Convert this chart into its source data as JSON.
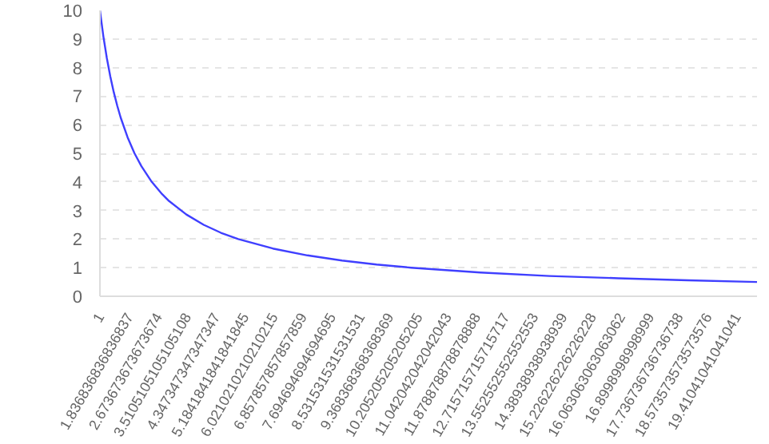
{
  "chart_data": {
    "type": "line",
    "x": [
      1,
      1.1,
      1.2,
      1.3,
      1.4,
      1.5,
      1.6,
      1.8,
      2,
      2.2,
      2.5,
      2.8,
      3,
      3.5,
      4,
      4.5,
      5,
      6,
      7,
      8,
      9,
      10,
      12,
      14,
      16,
      18,
      20
    ],
    "series": [
      {
        "color": "#3f3fff",
        "values": [
          10,
          9.09,
          8.33,
          7.69,
          7.14,
          6.67,
          6.25,
          5.56,
          5,
          4.55,
          4,
          3.57,
          3.33,
          2.86,
          2.5,
          2.22,
          2,
          1.67,
          1.43,
          1.25,
          1.11,
          1,
          0.83,
          0.71,
          0.63,
          0.56,
          0.5
        ]
      }
    ],
    "xlim": [
      1,
      20
    ],
    "xticks": [
      1,
      {
        "value": 1.836836836836837,
        "label": "1.836836836836837"
      },
      {
        "value": 2.673673673673674,
        "label": "2.673673673673674"
      },
      {
        "value": 3.5105105105105108,
        "label": "3.5105105105105108"
      },
      {
        "value": 4.347347347347347,
        "label": "4.347347347347347"
      },
      {
        "value": 5.1841841841841845,
        "label": "5.1841841841841845"
      },
      {
        "value": 6.0210210210210215,
        "label": "6.0210210210210215"
      },
      {
        "value": 6.857857857857859,
        "label": "6.857857857857859"
      },
      {
        "value": 7.694694694694695,
        "label": "7.694694694694695"
      },
      {
        "value": 8.531531531531531,
        "label": "8.531531531531531"
      },
      {
        "value": 9.368368368368369,
        "label": "9.368368368368369"
      },
      {
        "value": 10.205205205205205,
        "label": "10.205205205205205"
      },
      {
        "value": 11.042042042042043,
        "label": "11.042042042042043"
      },
      {
        "value": 11.878878878878888,
        "label": "11.878878878878888"
      },
      {
        "value": 12.715715715715717,
        "label": "12.715715715715717"
      },
      {
        "value": 13.552552552552553,
        "label": "13.552552552552553"
      },
      {
        "value": 14.38938938938939,
        "label": "14.38938938938939"
      },
      {
        "value": 15.226226226226228,
        "label": "15.226226226226228"
      },
      {
        "value": 16.063063063063062,
        "label": "16.063063063063062"
      },
      {
        "value": 16.8998998998999,
        "label": "16.8998998998999"
      },
      {
        "value": 17.736736736736738,
        "label": "17.736736736736738"
      },
      {
        "value": 18.573573573573576,
        "label": "18.573573573573576"
      },
      {
        "value": 19.41041041041041,
        "label": "19.41041041041041"
      }
    ],
    "ylim": [
      0,
      10
    ],
    "yticks": [
      0,
      1,
      2,
      3,
      4,
      5,
      6,
      7,
      8,
      9,
      10
    ],
    "grid": "y",
    "line_style": "solid"
  }
}
